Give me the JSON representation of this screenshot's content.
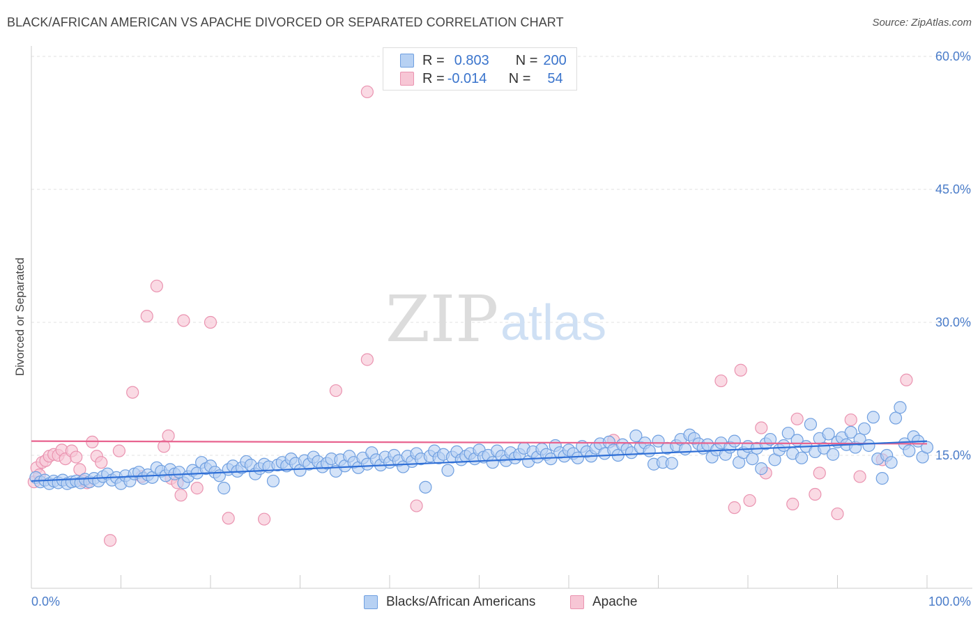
{
  "title": "BLACK/AFRICAN AMERICAN VS APACHE DIVORCED OR SEPARATED CORRELATION CHART",
  "source": "Source: ZipAtlas.com",
  "watermark": {
    "zip": "ZIP",
    "atlas": "atlas"
  },
  "legend": {
    "series1": {
      "r_label": "R =",
      "r_value": "0.803",
      "n_label": "N =",
      "n_value": "200"
    },
    "series2": {
      "r_label": "R =",
      "r_value": "-0.014",
      "n_label": "N =",
      "n_value": "54"
    }
  },
  "colors": {
    "blue_fill": "#b7d1f3",
    "blue_stroke": "#6f9fe0",
    "blue_line": "#2f6fd6",
    "pink_fill": "#f7c6d5",
    "pink_stroke": "#ea93b0",
    "pink_line": "#e8638f"
  },
  "chart_data": {
    "type": "scatter",
    "title": "BLACK/AFRICAN AMERICAN VS APACHE DIVORCED OR SEPARATED CORRELATION CHART",
    "ylabel": "Divorced or Separated",
    "xlabel": "",
    "xlim": [
      0,
      100
    ],
    "ylim": [
      0,
      62
    ],
    "x_tick_labels": [
      "0.0%",
      "100.0%"
    ],
    "y_ticks": [
      15,
      30,
      45,
      60
    ],
    "y_tick_labels": [
      "15.0%",
      "30.0%",
      "45.0%",
      "60.0%"
    ],
    "grid": true,
    "legend_position": "top-center",
    "series": [
      {
        "name": "Blacks/African Americans",
        "trend": {
          "x": [
            0,
            100
          ],
          "y": [
            12.1,
            16.6
          ]
        },
        "points": [
          [
            0.5,
            12.5
          ],
          [
            1,
            12.0
          ],
          [
            1.5,
            12.2
          ],
          [
            2,
            11.8
          ],
          [
            2.5,
            12.1
          ],
          [
            3,
            11.9
          ],
          [
            3.5,
            12.2
          ],
          [
            4,
            11.8
          ],
          [
            4.5,
            12.0
          ],
          [
            5,
            12.1
          ],
          [
            5.5,
            11.9
          ],
          [
            6,
            12.3
          ],
          [
            6.5,
            12.0
          ],
          [
            7,
            12.4
          ],
          [
            7.5,
            12.1
          ],
          [
            8,
            12.6
          ],
          [
            8.5,
            12.9
          ],
          [
            9,
            12.2
          ],
          [
            9.5,
            12.5
          ],
          [
            10,
            11.8
          ],
          [
            10.5,
            12.7
          ],
          [
            11,
            12.1
          ],
          [
            11.5,
            12.9
          ],
          [
            12,
            13.1
          ],
          [
            12.5,
            12.4
          ],
          [
            13,
            12.8
          ],
          [
            13.5,
            12.5
          ],
          [
            14,
            13.6
          ],
          [
            14.5,
            13.2
          ],
          [
            15,
            12.7
          ],
          [
            15.5,
            13.4
          ],
          [
            16,
            12.9
          ],
          [
            16.5,
            13.1
          ],
          [
            17,
            11.9
          ],
          [
            17.5,
            12.6
          ],
          [
            18,
            13.3
          ],
          [
            18.5,
            13.0
          ],
          [
            19,
            14.2
          ],
          [
            19.5,
            13.5
          ],
          [
            20,
            13.8
          ],
          [
            20.5,
            13.1
          ],
          [
            21,
            12.7
          ],
          [
            21.5,
            11.3
          ],
          [
            22,
            13.4
          ],
          [
            22.5,
            13.8
          ],
          [
            23,
            13.2
          ],
          [
            23.5,
            13.6
          ],
          [
            24,
            14.3
          ],
          [
            24.5,
            13.9
          ],
          [
            25,
            12.9
          ],
          [
            25.5,
            13.5
          ],
          [
            26,
            14.0
          ],
          [
            26.5,
            13.7
          ],
          [
            27,
            12.1
          ],
          [
            27.5,
            13.9
          ],
          [
            28,
            14.2
          ],
          [
            28.5,
            13.8
          ],
          [
            29,
            14.6
          ],
          [
            29.5,
            14.1
          ],
          [
            30,
            13.3
          ],
          [
            30.5,
            14.4
          ],
          [
            31,
            14.0
          ],
          [
            31.5,
            14.8
          ],
          [
            32,
            14.3
          ],
          [
            32.5,
            13.7
          ],
          [
            33,
            14.1
          ],
          [
            33.5,
            14.6
          ],
          [
            34,
            13.2
          ],
          [
            34.5,
            14.5
          ],
          [
            35,
            13.8
          ],
          [
            35.5,
            14.9
          ],
          [
            36,
            14.2
          ],
          [
            36.5,
            13.6
          ],
          [
            37,
            14.7
          ],
          [
            37.5,
            14.0
          ],
          [
            38,
            15.3
          ],
          [
            38.5,
            14.5
          ],
          [
            39,
            13.9
          ],
          [
            39.5,
            14.8
          ],
          [
            40,
            14.2
          ],
          [
            40.5,
            15.0
          ],
          [
            41,
            14.4
          ],
          [
            41.5,
            13.7
          ],
          [
            42,
            14.9
          ],
          [
            42.5,
            14.3
          ],
          [
            43,
            15.2
          ],
          [
            43.5,
            14.6
          ],
          [
            44,
            11.4
          ],
          [
            44.5,
            14.9
          ],
          [
            45,
            15.5
          ],
          [
            45.5,
            14.7
          ],
          [
            46,
            15.1
          ],
          [
            46.5,
            13.3
          ],
          [
            47,
            14.8
          ],
          [
            47.5,
            15.4
          ],
          [
            48,
            14.5
          ],
          [
            48.5,
            14.9
          ],
          [
            49,
            15.2
          ],
          [
            49.5,
            14.6
          ],
          [
            50,
            15.6
          ],
          [
            50.5,
            14.8
          ],
          [
            51,
            15.0
          ],
          [
            51.5,
            14.2
          ],
          [
            52,
            15.5
          ],
          [
            52.5,
            14.9
          ],
          [
            53,
            14.4
          ],
          [
            53.5,
            15.3
          ],
          [
            54,
            14.7
          ],
          [
            54.5,
            15.1
          ],
          [
            55,
            15.8
          ],
          [
            55.5,
            14.3
          ],
          [
            56,
            15.4
          ],
          [
            56.5,
            14.8
          ],
          [
            57,
            15.7
          ],
          [
            57.5,
            15.1
          ],
          [
            58,
            14.6
          ],
          [
            58.5,
            16.1
          ],
          [
            59,
            15.3
          ],
          [
            59.5,
            14.9
          ],
          [
            60,
            15.6
          ],
          [
            60.5,
            15.2
          ],
          [
            61,
            14.7
          ],
          [
            61.5,
            16.0
          ],
          [
            62,
            15.4
          ],
          [
            62.5,
            14.9
          ],
          [
            63,
            15.8
          ],
          [
            63.5,
            16.3
          ],
          [
            64,
            15.2
          ],
          [
            64.5,
            16.5
          ],
          [
            65,
            15.6
          ],
          [
            65.5,
            15.0
          ],
          [
            66,
            16.2
          ],
          [
            66.5,
            15.7
          ],
          [
            67,
            15.3
          ],
          [
            67.5,
            17.2
          ],
          [
            68,
            15.9
          ],
          [
            68.5,
            16.4
          ],
          [
            69,
            15.5
          ],
          [
            69.5,
            14.0
          ],
          [
            70,
            16.6
          ],
          [
            70.5,
            14.2
          ],
          [
            71,
            15.8
          ],
          [
            71.5,
            14.1
          ],
          [
            72,
            16.1
          ],
          [
            72.5,
            16.8
          ],
          [
            73,
            15.7
          ],
          [
            73.5,
            17.3
          ],
          [
            74,
            16.9
          ],
          [
            74.5,
            16.3
          ],
          [
            75,
            15.8
          ],
          [
            75.5,
            16.2
          ],
          [
            76,
            14.8
          ],
          [
            76.5,
            15.6
          ],
          [
            77,
            16.4
          ],
          [
            77.5,
            15.1
          ],
          [
            78,
            15.9
          ],
          [
            78.5,
            16.6
          ],
          [
            79,
            14.2
          ],
          [
            79.5,
            15.3
          ],
          [
            80,
            16.0
          ],
          [
            80.5,
            14.6
          ],
          [
            81,
            15.8
          ],
          [
            81.5,
            13.5
          ],
          [
            82,
            16.3
          ],
          [
            82.5,
            16.8
          ],
          [
            83,
            14.5
          ],
          [
            83.5,
            15.6
          ],
          [
            84,
            16.1
          ],
          [
            84.5,
            17.5
          ],
          [
            85,
            15.2
          ],
          [
            85.5,
            16.7
          ],
          [
            86,
            14.7
          ],
          [
            86.5,
            16.0
          ],
          [
            87,
            18.5
          ],
          [
            87.5,
            15.4
          ],
          [
            88,
            16.9
          ],
          [
            88.5,
            15.8
          ],
          [
            89,
            17.4
          ],
          [
            89.5,
            15.1
          ],
          [
            90,
            16.5
          ],
          [
            90.5,
            17.0
          ],
          [
            91,
            16.2
          ],
          [
            91.5,
            17.6
          ],
          [
            92,
            15.9
          ],
          [
            92.5,
            16.8
          ],
          [
            93,
            18.0
          ],
          [
            93.5,
            16.1
          ],
          [
            94,
            19.3
          ],
          [
            94.5,
            14.6
          ],
          [
            95,
            12.4
          ],
          [
            95.5,
            15.0
          ],
          [
            96,
            14.2
          ],
          [
            96.5,
            19.2
          ],
          [
            97,
            20.4
          ],
          [
            97.5,
            16.3
          ],
          [
            98,
            15.5
          ],
          [
            98.5,
            17.1
          ],
          [
            99,
            16.6
          ],
          [
            99.5,
            14.8
          ],
          [
            100,
            15.9
          ]
        ]
      },
      {
        "name": "Apache",
        "trend": {
          "x": [
            0,
            100
          ],
          "y": [
            16.6,
            16.3
          ]
        },
        "points": [
          [
            0.3,
            12.0
          ],
          [
            0.6,
            13.6
          ],
          [
            0.9,
            12.8
          ],
          [
            1.2,
            14.2
          ],
          [
            1.6,
            14.4
          ],
          [
            2.0,
            14.9
          ],
          [
            2.5,
            15.1
          ],
          [
            3.0,
            15.0
          ],
          [
            3.4,
            15.6
          ],
          [
            3.8,
            14.6
          ],
          [
            4.5,
            15.5
          ],
          [
            5.0,
            14.8
          ],
          [
            5.4,
            13.4
          ],
          [
            5.8,
            12.1
          ],
          [
            6.2,
            11.9
          ],
          [
            6.8,
            16.5
          ],
          [
            7.3,
            14.9
          ],
          [
            7.8,
            14.2
          ],
          [
            8.8,
            5.4
          ],
          [
            9.8,
            15.5
          ],
          [
            11.3,
            22.1
          ],
          [
            12.3,
            12.6
          ],
          [
            12.9,
            30.7
          ],
          [
            14.0,
            34.1
          ],
          [
            14.8,
            16.0
          ],
          [
            15.3,
            17.2
          ],
          [
            15.6,
            12.4
          ],
          [
            16.3,
            11.9
          ],
          [
            16.7,
            10.5
          ],
          [
            17.0,
            30.2
          ],
          [
            18.5,
            11.3
          ],
          [
            20.0,
            30.0
          ],
          [
            22.0,
            7.9
          ],
          [
            26.0,
            7.8
          ],
          [
            34.0,
            22.3
          ],
          [
            37.5,
            25.8
          ],
          [
            37.5,
            56.0
          ],
          [
            43.0,
            9.3
          ],
          [
            65.0,
            16.7
          ],
          [
            77.0,
            23.4
          ],
          [
            78.5,
            9.1
          ],
          [
            79.2,
            24.6
          ],
          [
            80.2,
            9.9
          ],
          [
            81.5,
            18.1
          ],
          [
            82.0,
            13.0
          ],
          [
            85.0,
            9.5
          ],
          [
            85.5,
            19.1
          ],
          [
            87.5,
            10.6
          ],
          [
            88.0,
            13.0
          ],
          [
            90.0,
            8.4
          ],
          [
            91.5,
            19.0
          ],
          [
            92.5,
            12.6
          ],
          [
            95.0,
            14.5
          ],
          [
            97.7,
            23.5
          ]
        ]
      }
    ]
  },
  "bottom_legend": {
    "series1": "Blacks/African Americans",
    "series2": "Apache"
  }
}
